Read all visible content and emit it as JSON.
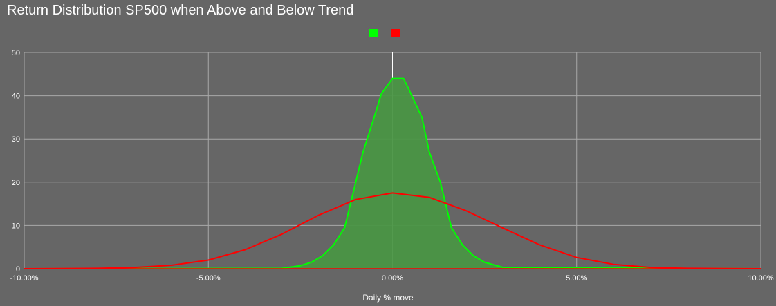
{
  "chart_data": {
    "type": "area",
    "title": "Return Distribution SP500 when Above and Below Trend",
    "xlabel": "Daily % move",
    "ylabel": "",
    "x_ticks": [
      "-10.00%",
      "-5.00%",
      "0.00%",
      "5.00%",
      "10.00%"
    ],
    "y_ticks": [
      "0",
      "10",
      "20",
      "30",
      "40",
      "50"
    ],
    "xlim": [
      -0.1,
      0.1
    ],
    "ylim": [
      0,
      50
    ],
    "grid": true,
    "legend_position": "top",
    "series": [
      {
        "name": "",
        "color": "#00ff00",
        "fill": "#4a9545",
        "style": "area",
        "x": [
          -0.1,
          -0.03,
          -0.025,
          -0.022,
          -0.019,
          -0.016,
          -0.013,
          -0.01,
          -0.008,
          -0.005,
          -0.003,
          0.0,
          0.003,
          0.005,
          0.008,
          0.01,
          0.013,
          0.016,
          0.019,
          0.022,
          0.025,
          0.03,
          0.1
        ],
        "values": [
          0,
          0.1,
          0.7,
          1.5,
          3.0,
          5.5,
          9.5,
          20.0,
          27.0,
          35.0,
          40.5,
          44.0,
          44.0,
          40.5,
          35.0,
          27.0,
          20.0,
          9.5,
          5.5,
          3.0,
          1.5,
          0.3,
          0
        ]
      },
      {
        "name": "",
        "color": "#ff0000",
        "style": "line",
        "x": [
          -0.1,
          -0.08,
          -0.07,
          -0.06,
          -0.05,
          -0.04,
          -0.03,
          -0.02,
          -0.01,
          0.0,
          0.01,
          0.02,
          0.03,
          0.04,
          0.05,
          0.06,
          0.07,
          0.08,
          0.1
        ],
        "values": [
          0,
          0.1,
          0.3,
          0.8,
          2.0,
          4.4,
          8.0,
          12.4,
          16.0,
          17.5,
          16.5,
          13.4,
          9.4,
          5.5,
          2.6,
          1.0,
          0.3,
          0.1,
          0
        ]
      }
    ]
  }
}
